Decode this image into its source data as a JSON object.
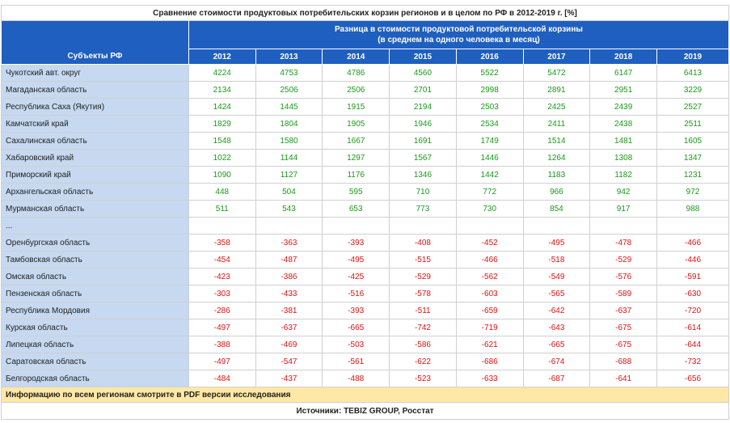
{
  "title": "Сравнение стоимости продуктовых потребительских корзин регионов и в целом по РФ в 2012-2019 г. [%]",
  "header": {
    "subject_label": "Субъекты РФ",
    "group_line1": "Разница в стоимости продуктовой потребительской корзины",
    "group_line2": "(в среднем на одного человека в месяц)",
    "years": [
      "2012",
      "2013",
      "2014",
      "2015",
      "2016",
      "2017",
      "2018",
      "2019"
    ]
  },
  "rows": [
    {
      "name": "Чукотский авт. округ",
      "values": [
        "4224",
        "4753",
        "4786",
        "4560",
        "5522",
        "5472",
        "6147",
        "6413"
      ],
      "sign": "pos"
    },
    {
      "name": "Магаданская область",
      "values": [
        "2134",
        "2506",
        "2506",
        "2701",
        "2998",
        "2891",
        "2951",
        "3229"
      ],
      "sign": "pos"
    },
    {
      "name": "Республика Саха (Якутия)",
      "values": [
        "1424",
        "1445",
        "1915",
        "2194",
        "2503",
        "2425",
        "2439",
        "2527"
      ],
      "sign": "pos"
    },
    {
      "name": "Камчатский край",
      "values": [
        "1829",
        "1804",
        "1905",
        "1946",
        "2534",
        "2411",
        "2438",
        "2511"
      ],
      "sign": "pos"
    },
    {
      "name": "Сахалинская область",
      "values": [
        "1548",
        "1580",
        "1667",
        "1691",
        "1749",
        "1514",
        "1481",
        "1605"
      ],
      "sign": "pos"
    },
    {
      "name": "Хабаровский край",
      "values": [
        "1022",
        "1144",
        "1297",
        "1567",
        "1446",
        "1264",
        "1308",
        "1347"
      ],
      "sign": "pos"
    },
    {
      "name": "Приморский край",
      "values": [
        "1090",
        "1127",
        "1176",
        "1346",
        "1442",
        "1183",
        "1182",
        "1231"
      ],
      "sign": "pos"
    },
    {
      "name": "Архангельская область",
      "values": [
        "448",
        "504",
        "595",
        "710",
        "772",
        "966",
        "942",
        "972"
      ],
      "sign": "pos"
    },
    {
      "name": "Мурманская область",
      "values": [
        "511",
        "543",
        "653",
        "773",
        "730",
        "854",
        "917",
        "988"
      ],
      "sign": "pos"
    },
    {
      "name": "...",
      "values": [
        "",
        "",
        "",
        "",
        "",
        "",
        "",
        ""
      ],
      "sign": "none"
    },
    {
      "name": "Оренбургская область",
      "values": [
        "-358",
        "-363",
        "-393",
        "-408",
        "-452",
        "-495",
        "-478",
        "-466"
      ],
      "sign": "neg"
    },
    {
      "name": "Тамбовская область",
      "values": [
        "-454",
        "-487",
        "-495",
        "-515",
        "-466",
        "-518",
        "-529",
        "-446"
      ],
      "sign": "neg"
    },
    {
      "name": "Омская область",
      "values": [
        "-423",
        "-386",
        "-425",
        "-529",
        "-562",
        "-549",
        "-576",
        "-591"
      ],
      "sign": "neg"
    },
    {
      "name": "Пензенская область",
      "values": [
        "-303",
        "-433",
        "-516",
        "-578",
        "-603",
        "-565",
        "-589",
        "-630"
      ],
      "sign": "neg"
    },
    {
      "name": "Республика Мордовия",
      "values": [
        "-286",
        "-381",
        "-393",
        "-511",
        "-659",
        "-642",
        "-637",
        "-720"
      ],
      "sign": "neg"
    },
    {
      "name": "Курская область",
      "values": [
        "-497",
        "-637",
        "-665",
        "-742",
        "-719",
        "-643",
        "-675",
        "-614"
      ],
      "sign": "neg"
    },
    {
      "name": "Липецкая область",
      "values": [
        "-388",
        "-469",
        "-503",
        "-586",
        "-621",
        "-665",
        "-675",
        "-644"
      ],
      "sign": "neg"
    },
    {
      "name": "Саратовская область",
      "values": [
        "-497",
        "-547",
        "-561",
        "-622",
        "-686",
        "-674",
        "-688",
        "-732"
      ],
      "sign": "neg"
    },
    {
      "name": "Белгородская область",
      "values": [
        "-484",
        "-437",
        "-488",
        "-523",
        "-633",
        "-687",
        "-641",
        "-656"
      ],
      "sign": "neg"
    }
  ],
  "footer": {
    "info": "Информацию по всем регионам смотрите в PDF версии исследования",
    "source": "Источники: TEBIZ GROUP, Росстат"
  },
  "colors": {
    "header_bg": "#1f5fbf",
    "name_bg": "#c6d9f0",
    "positive": "#1a9a1a",
    "negative": "#e01010",
    "info_bg": "#ffe8a6"
  }
}
